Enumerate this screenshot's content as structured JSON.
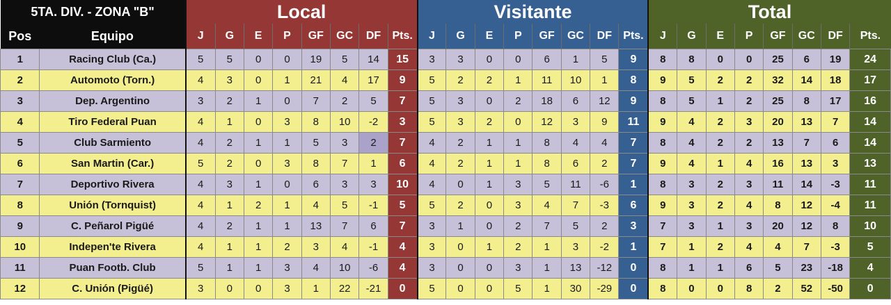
{
  "title": "5TA. DIV. - ZONA \"B\"",
  "sections": {
    "local": "Local",
    "visitante": "Visitante",
    "total": "Total"
  },
  "headers": {
    "pos": "Pos",
    "team": "Equipo",
    "cols": [
      "J",
      "G",
      "E",
      "P",
      "GF",
      "GC",
      "DF",
      "Pts."
    ]
  },
  "colors": {
    "local": "#953735",
    "visitante": "#376092",
    "total": "#4f6228",
    "row_odd": "#c6c0d8",
    "row_even": "#f4ef8e"
  },
  "rows": [
    {
      "pos": "1",
      "team": "Racing Club (Ca.)",
      "local": [
        "5",
        "5",
        "0",
        "0",
        "19",
        "5",
        "14",
        "15"
      ],
      "visitante": [
        "3",
        "3",
        "0",
        "0",
        "6",
        "1",
        "5",
        "9"
      ],
      "total": [
        "8",
        "8",
        "0",
        "0",
        "25",
        "6",
        "19",
        "24"
      ]
    },
    {
      "pos": "2",
      "team": "Automoto (Torn.)",
      "local": [
        "4",
        "3",
        "0",
        "1",
        "21",
        "4",
        "17",
        "9"
      ],
      "visitante": [
        "5",
        "2",
        "2",
        "1",
        "11",
        "10",
        "1",
        "8"
      ],
      "total": [
        "9",
        "5",
        "2",
        "2",
        "32",
        "14",
        "18",
        "17"
      ]
    },
    {
      "pos": "3",
      "team": "Dep. Argentino",
      "local": [
        "3",
        "2",
        "1",
        "0",
        "7",
        "2",
        "5",
        "7"
      ],
      "visitante": [
        "5",
        "3",
        "0",
        "2",
        "18",
        "6",
        "12",
        "9"
      ],
      "total": [
        "8",
        "5",
        "1",
        "2",
        "25",
        "8",
        "17",
        "16"
      ]
    },
    {
      "pos": "4",
      "team": "Tiro Federal Puan",
      "local": [
        "4",
        "1",
        "0",
        "3",
        "8",
        "10",
        "-2",
        "3"
      ],
      "visitante": [
        "5",
        "3",
        "2",
        "0",
        "12",
        "3",
        "9",
        "11"
      ],
      "total": [
        "9",
        "4",
        "2",
        "3",
        "20",
        "13",
        "7",
        "14"
      ]
    },
    {
      "pos": "5",
      "team": "Club Sarmiento",
      "local": [
        "4",
        "2",
        "1",
        "1",
        "5",
        "3",
        "2",
        "7"
      ],
      "visitante": [
        "4",
        "2",
        "1",
        "1",
        "8",
        "4",
        "4",
        "7"
      ],
      "total": [
        "8",
        "4",
        "2",
        "2",
        "13",
        "7",
        "6",
        "14"
      ]
    },
    {
      "pos": "6",
      "team": "San Martin (Car.)",
      "local": [
        "5",
        "2",
        "0",
        "3",
        "8",
        "7",
        "1",
        "6"
      ],
      "visitante": [
        "4",
        "2",
        "1",
        "1",
        "8",
        "6",
        "2",
        "7"
      ],
      "total": [
        "9",
        "4",
        "1",
        "4",
        "16",
        "13",
        "3",
        "13"
      ]
    },
    {
      "pos": "7",
      "team": "Deportivo Rivera",
      "local": [
        "4",
        "3",
        "1",
        "0",
        "6",
        "3",
        "3",
        "10"
      ],
      "visitante": [
        "4",
        "0",
        "1",
        "3",
        "5",
        "11",
        "-6",
        "1"
      ],
      "total": [
        "8",
        "3",
        "2",
        "3",
        "11",
        "14",
        "-3",
        "11"
      ]
    },
    {
      "pos": "8",
      "team": "Unión (Tornquist)",
      "local": [
        "4",
        "1",
        "2",
        "1",
        "4",
        "5",
        "-1",
        "5"
      ],
      "visitante": [
        "5",
        "2",
        "0",
        "3",
        "4",
        "7",
        "-3",
        "6"
      ],
      "total": [
        "9",
        "3",
        "2",
        "4",
        "8",
        "12",
        "-4",
        "11"
      ]
    },
    {
      "pos": "9",
      "team": "C. Peñarol Pigüé",
      "local": [
        "4",
        "2",
        "1",
        "1",
        "13",
        "7",
        "6",
        "7"
      ],
      "visitante": [
        "3",
        "1",
        "0",
        "2",
        "7",
        "5",
        "2",
        "3"
      ],
      "total": [
        "7",
        "3",
        "1",
        "3",
        "20",
        "12",
        "8",
        "10"
      ]
    },
    {
      "pos": "10",
      "team": "Indepen'te Rivera",
      "local": [
        "4",
        "1",
        "1",
        "2",
        "3",
        "4",
        "-1",
        "4"
      ],
      "visitante": [
        "3",
        "0",
        "1",
        "2",
        "1",
        "3",
        "-2",
        "1"
      ],
      "total": [
        "7",
        "1",
        "2",
        "4",
        "4",
        "7",
        "-3",
        "5"
      ]
    },
    {
      "pos": "11",
      "team": "Puan Footb. Club",
      "local": [
        "5",
        "1",
        "1",
        "3",
        "4",
        "10",
        "-6",
        "4"
      ],
      "visitante": [
        "3",
        "0",
        "0",
        "3",
        "1",
        "13",
        "-12",
        "0"
      ],
      "total": [
        "8",
        "1",
        "1",
        "6",
        "5",
        "23",
        "-18",
        "4"
      ]
    },
    {
      "pos": "12",
      "team": "C. Unión (Pigüé)",
      "local": [
        "3",
        "0",
        "0",
        "3",
        "1",
        "22",
        "-21",
        "0"
      ],
      "visitante": [
        "5",
        "0",
        "0",
        "5",
        "1",
        "30",
        "-29",
        "0"
      ],
      "total": [
        "8",
        "0",
        "0",
        "8",
        "2",
        "52",
        "-50",
        "0"
      ]
    }
  ]
}
